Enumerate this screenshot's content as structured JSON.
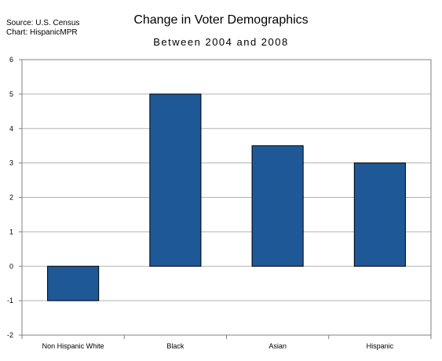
{
  "source_line": "Source: U.S. Census",
  "chart_credit": "Chart: HispanicMPR",
  "colors": {
    "bar_fill": "#1f5897",
    "bar_stroke": "#000000",
    "grid": "#b3b3b3",
    "axis": "#808080"
  },
  "chart_data": {
    "type": "bar",
    "title": "Change in Voter Demographics",
    "subtitle": "Between 2004 and 2008",
    "xlabel": "",
    "ylabel": "",
    "categories": [
      "Non Hispanic White",
      "Black",
      "Asian",
      "Hispanic"
    ],
    "values": [
      -1,
      5,
      3.5,
      3
    ],
    "ylim": [
      -2,
      6
    ],
    "yticks": [
      "6",
      "5",
      "4",
      "3",
      "2",
      "1",
      "0",
      "-1",
      "-2"
    ],
    "grid": true,
    "legend": "none"
  }
}
